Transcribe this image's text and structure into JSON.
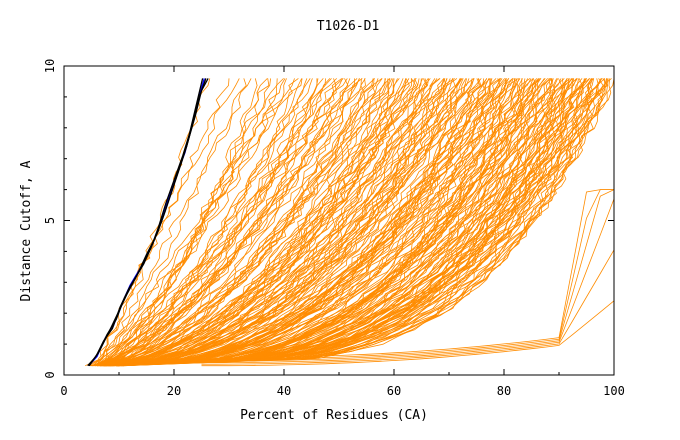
{
  "chart_data": {
    "type": "line",
    "title": "T1026-D1",
    "xlabel": "Percent of Residues (CA)",
    "ylabel": "Distance Cutoff, A",
    "xlim": [
      0,
      100
    ],
    "ylim": [
      0,
      10
    ],
    "x_ticks": [
      0,
      20,
      40,
      60,
      80,
      100
    ],
    "y_ticks": [
      0,
      5,
      10
    ],
    "grid": false,
    "legend": "none",
    "colors": {
      "background_models": "#ff8c00",
      "top_model_a": "#0000ff",
      "top_model_b": "#000000",
      "axes": "#000000"
    },
    "series": [
      {
        "points": [
          [
            4.5,
            0.3
          ],
          [
            6,
            0.6
          ],
          [
            7.5,
            1.2
          ],
          [
            9,
            1.6
          ],
          [
            10.5,
            2.3
          ],
          [
            12,
            2.9
          ],
          [
            14,
            3.5
          ],
          [
            16,
            4.2
          ],
          [
            17.5,
            4.9
          ],
          [
            19,
            5.7
          ],
          [
            20.5,
            6.5
          ],
          [
            22,
            7.2
          ],
          [
            23,
            7.9
          ],
          [
            24.2,
            8.8
          ],
          [
            25.5,
            9.6
          ]
        ]
      },
      {
        "points": [
          [
            4.5,
            0.3
          ],
          [
            6.2,
            0.7
          ],
          [
            7.8,
            1.3
          ],
          [
            9.5,
            1.8
          ],
          [
            11,
            2.5
          ],
          [
            12.5,
            3.0
          ],
          [
            14.5,
            3.6
          ],
          [
            16.5,
            4.4
          ],
          [
            18,
            5.1
          ],
          [
            19.5,
            5.9
          ],
          [
            21,
            6.7
          ],
          [
            22.3,
            7.4
          ],
          [
            23.5,
            8.2
          ],
          [
            24.6,
            9.0
          ],
          [
            25.8,
            9.6
          ]
        ]
      },
      {
        "points": [
          [
            4.3,
            0.3
          ],
          [
            5.8,
            0.6
          ],
          [
            7.2,
            1.1
          ],
          [
            8.8,
            1.5
          ],
          [
            10.2,
            2.2
          ],
          [
            11.8,
            2.8
          ],
          [
            13.8,
            3.4
          ],
          [
            15.8,
            4.1
          ],
          [
            17.2,
            4.8
          ],
          [
            18.6,
            5.6
          ],
          [
            20.2,
            6.4
          ],
          [
            21.6,
            7.1
          ],
          [
            22.8,
            7.8
          ],
          [
            24,
            8.7
          ],
          [
            25.2,
            9.6
          ]
        ]
      },
      {
        "points": [
          [
            4.6,
            0.3
          ],
          [
            6.5,
            0.8
          ],
          [
            8.2,
            1.4
          ],
          [
            9.8,
            2.0
          ],
          [
            11.4,
            2.6
          ],
          [
            13.2,
            3.2
          ],
          [
            15,
            3.9
          ],
          [
            17,
            4.6
          ],
          [
            18.4,
            5.3
          ],
          [
            19.9,
            6.1
          ],
          [
            21.4,
            6.9
          ],
          [
            22.6,
            7.6
          ],
          [
            23.9,
            8.4
          ],
          [
            25,
            9.2
          ],
          [
            26.2,
            9.6
          ]
        ]
      }
    ]
  }
}
